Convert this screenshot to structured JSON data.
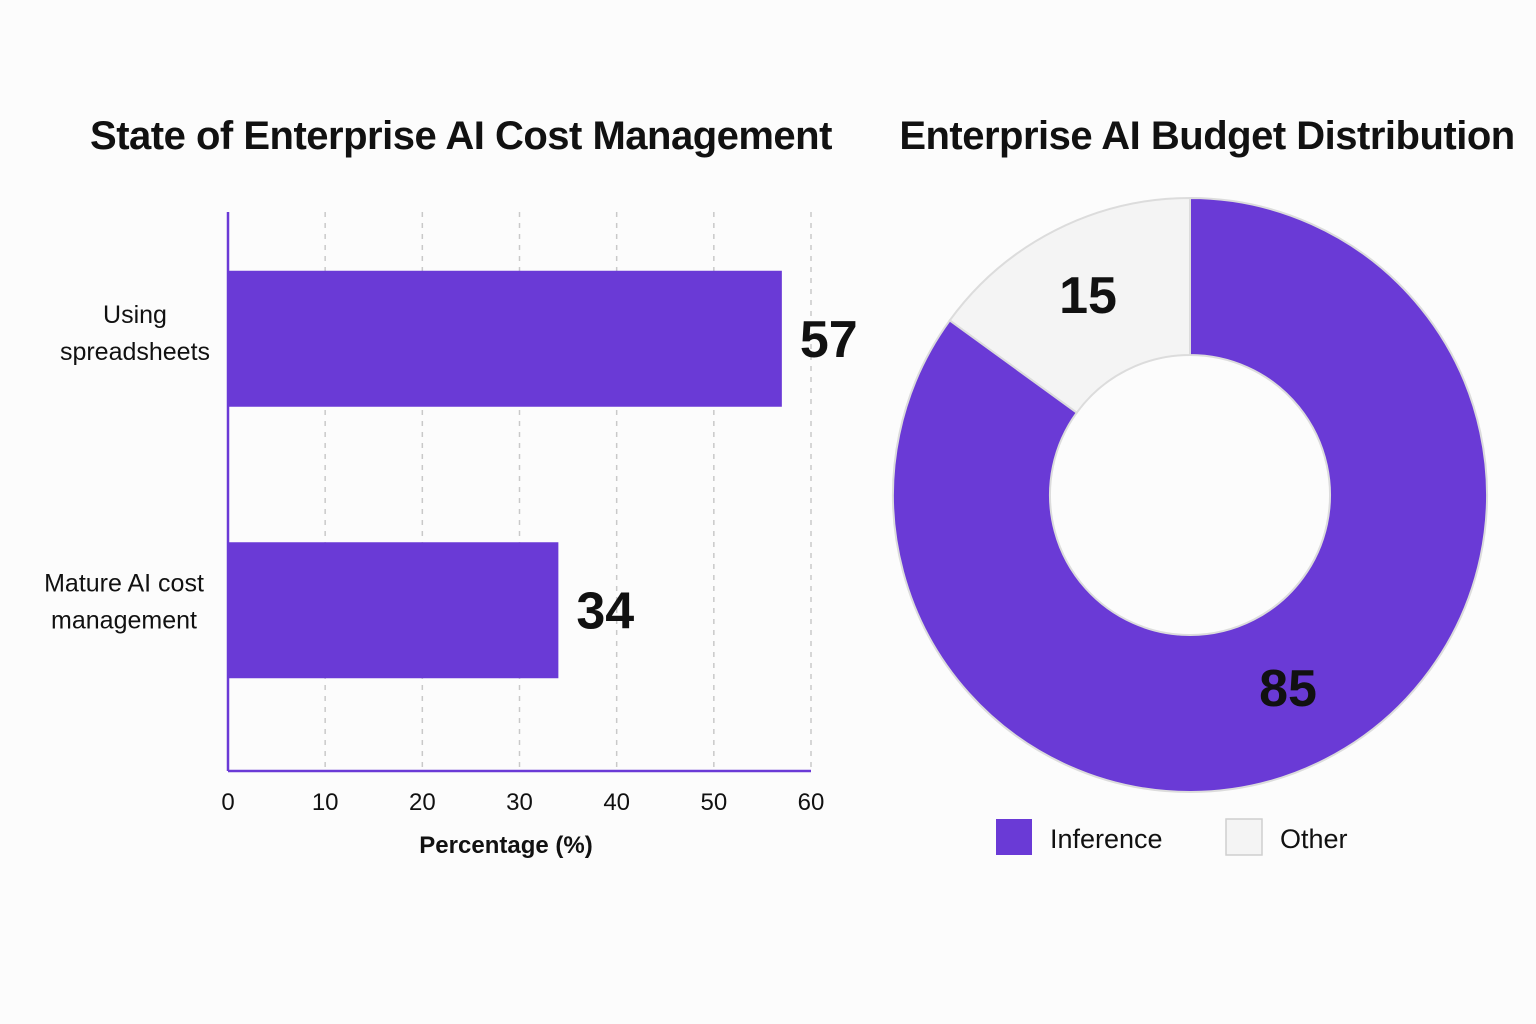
{
  "chart_data": [
    {
      "type": "bar",
      "orientation": "horizontal",
      "title": "State of Enterprise AI Cost Management",
      "categories": [
        [
          "Using",
          "spreadsheets"
        ],
        [
          "Mature AI cost",
          "management"
        ]
      ],
      "values": [
        57,
        34
      ],
      "data_labels": [
        "57",
        "34"
      ],
      "xlabel": "Percentage (%)",
      "xlim": [
        0,
        60
      ],
      "xticks": [
        "0",
        "10",
        "20",
        "30",
        "40",
        "50",
        "60"
      ],
      "grid": "vertical dashed",
      "bar_color": "#6a3ad6"
    },
    {
      "type": "pie",
      "variant": "donut",
      "title": "Enterprise AI Budget Distribution",
      "slices": [
        {
          "name": "Other",
          "value": 15,
          "label": "15",
          "color": "#f4f4f4"
        },
        {
          "name": "Inference",
          "value": 85,
          "label": "85",
          "color": "#6a3ad6"
        }
      ],
      "legend": [
        {
          "label": "Inference",
          "color": "#6a3ad6"
        },
        {
          "label": "Other",
          "color": "#f4f4f4"
        }
      ],
      "legend_position": "bottom"
    }
  ]
}
